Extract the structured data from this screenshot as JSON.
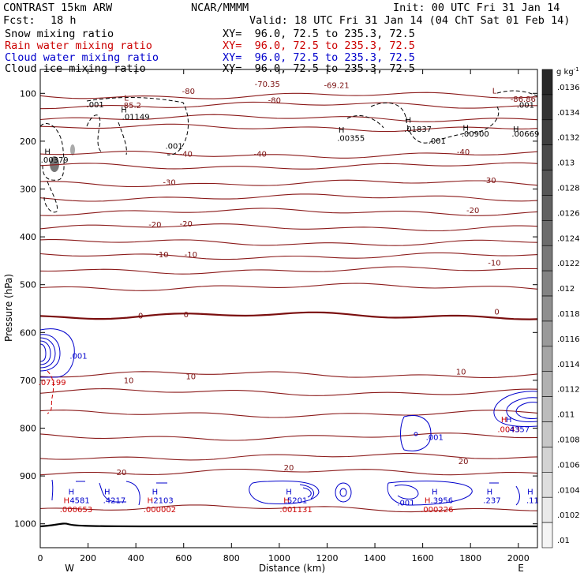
{
  "header": {
    "model": "CONTRAST 15km ARW",
    "org": "NCAR/MMMM",
    "init": "Init: 00 UTC Fri 31 Jan 14",
    "fcst_label": "Fcst:",
    "fcst_value": "18 h",
    "valid": "Valid: 18 UTC Fri 31 Jan 14 (04 ChT Sat 01 Feb 14)"
  },
  "legend": [
    {
      "label": "Snow mixing ratio",
      "xy": "XY=  96.0, 72.5 to 235.3, 72.5",
      "color": "#000000"
    },
    {
      "label": "Rain water mixing ratio",
      "xy": "XY=  96.0, 72.5 to 235.3, 72.5",
      "color": "#cc0000"
    },
    {
      "label": "Cloud water mixing ratio",
      "xy": "XY=  96.0, 72.5 to 235.3, 72.5",
      "color": "#0000cc"
    },
    {
      "label": "Cloud ice mixing ratio",
      "xy": "XY=  96.0, 72.5 to 235.3, 72.5",
      "color": "#000000"
    }
  ],
  "chart_data": {
    "type": "contour",
    "xlabel": "Distance (km)",
    "ylabel": "Pressure (hPa)",
    "xlim": [
      0,
      2080
    ],
    "ylim": [
      1050,
      50
    ],
    "x_ticks": [
      0,
      200,
      400,
      600,
      800,
      1000,
      1200,
      1400,
      1600,
      1800,
      2000
    ],
    "y_ticks": [
      100,
      200,
      300,
      400,
      500,
      600,
      700,
      800,
      900,
      1000
    ],
    "x_end_labels": {
      "left": "W",
      "right": "E"
    },
    "colorbar": {
      "unit": "g kg",
      "unit_exp": "-1",
      "ticks": [
        ".0136",
        ".0134",
        ".0132",
        ".013",
        ".0128",
        ".0126",
        ".0124",
        ".0122",
        ".012",
        ".0118",
        ".0116",
        ".0114",
        ".0112",
        ".011",
        ".0108",
        ".0106",
        ".0104",
        ".0102",
        ".01"
      ]
    },
    "temperature_contours": [
      {
        "p": 105,
        "label": "-80"
      },
      {
        "p": 125,
        "label": "-80"
      },
      {
        "p": 152,
        "label": ""
      },
      {
        "p": 172,
        "label": ""
      },
      {
        "p": 228,
        "label": "-40"
      },
      {
        "p": 252,
        "label": ""
      },
      {
        "p": 288,
        "label": "-30"
      },
      {
        "p": 318,
        "label": ""
      },
      {
        "p": 348,
        "label": "-20"
      },
      {
        "p": 380,
        "label": ""
      },
      {
        "p": 412,
        "label": ""
      },
      {
        "p": 440,
        "label": "-10"
      },
      {
        "p": 470,
        "label": ""
      },
      {
        "p": 505,
        "label": ""
      },
      {
        "p": 565,
        "label": "0",
        "thick": true
      },
      {
        "p": 688,
        "label": "10"
      },
      {
        "p": 725,
        "label": ""
      },
      {
        "p": 770,
        "label": ""
      },
      {
        "p": 818,
        "label": ""
      },
      {
        "p": 860,
        "label": "20"
      },
      {
        "p": 892,
        "label": "20"
      },
      {
        "p": 968,
        "label": ""
      }
    ],
    "labels": [
      {
        "text": "-80",
        "x": 620,
        "p": 101,
        "color": "#7a1010"
      },
      {
        "text": "-70.35",
        "x": 950,
        "p": 86,
        "color": "#7a1010"
      },
      {
        "text": "-69.21",
        "x": 1240,
        "p": 89,
        "color": "#7a1010"
      },
      {
        "text": "-80",
        "x": 980,
        "p": 120,
        "color": "#7a1010"
      },
      {
        "text": "-86.86",
        "x": 2020,
        "p": 118,
        "color": "#7a1010"
      },
      {
        "text": "L",
        "x": 360,
        "p": 115,
        "color": "#7a1010"
      },
      {
        "text": "L",
        "x": 1900,
        "p": 100,
        "color": "#7a1010"
      },
      {
        "text": "-85.2",
        "x": 380,
        "p": 131,
        "color": "#7a1010"
      },
      {
        "text": "-40",
        "x": 610,
        "p": 232,
        "color": "#7a1010"
      },
      {
        "text": "-40",
        "x": 920,
        "p": 232,
        "color": "#7a1010"
      },
      {
        "text": "-40",
        "x": 1770,
        "p": 228,
        "color": "#7a1010"
      },
      {
        "text": "-30",
        "x": 540,
        "p": 292,
        "color": "#7a1010"
      },
      {
        "text": "-30",
        "x": 1880,
        "p": 288,
        "color": "#7a1010"
      },
      {
        "text": "-20",
        "x": 480,
        "p": 380,
        "color": "#7a1010"
      },
      {
        "text": "-20",
        "x": 610,
        "p": 378,
        "color": "#7a1010"
      },
      {
        "text": "-20",
        "x": 1810,
        "p": 350,
        "color": "#7a1010"
      },
      {
        "text": "-10",
        "x": 510,
        "p": 443,
        "color": "#7a1010"
      },
      {
        "text": "-10",
        "x": 630,
        "p": 443,
        "color": "#7a1010"
      },
      {
        "text": "-10",
        "x": 1900,
        "p": 460,
        "color": "#7a1010"
      },
      {
        "text": "0",
        "x": 420,
        "p": 571,
        "color": "#7a1010"
      },
      {
        "text": "0",
        "x": 610,
        "p": 568,
        "color": "#7a1010"
      },
      {
        "text": "0",
        "x": 1910,
        "p": 562,
        "color": "#7a1010"
      },
      {
        "text": "10",
        "x": 370,
        "p": 706,
        "color": "#7a1010"
      },
      {
        "text": "10",
        "x": 630,
        "p": 698,
        "color": "#7a1010"
      },
      {
        "text": "10",
        "x": 1760,
        "p": 688,
        "color": "#7a1010"
      },
      {
        "text": "20",
        "x": 340,
        "p": 898,
        "color": "#7a1010"
      },
      {
        "text": "20",
        "x": 1040,
        "p": 888,
        "color": "#7a1010"
      },
      {
        "text": "20",
        "x": 1770,
        "p": 875,
        "color": "#7a1010"
      },
      {
        "text": ".001",
        "x": 230,
        "p": 129,
        "color": "#000000"
      },
      {
        "text": "H",
        "x": 350,
        "p": 140,
        "color": "#000000"
      },
      {
        "text": ".01149",
        "x": 400,
        "p": 155,
        "color": "#000000"
      },
      {
        "text": ".001",
        "x": 560,
        "p": 216,
        "color": "#000000"
      },
      {
        "text": "H",
        "x": 30,
        "p": 227,
        "color": "#000000"
      },
      {
        "text": ".00379",
        "x": 60,
        "p": 245,
        "color": "#000000"
      },
      {
        "text": "H",
        "x": 1260,
        "p": 182,
        "color": "#000000"
      },
      {
        "text": ".00355",
        "x": 1300,
        "p": 199,
        "color": "#000000"
      },
      {
        "text": "H",
        "x": 1540,
        "p": 161,
        "color": "#000000"
      },
      {
        "text": ".01837",
        "x": 1580,
        "p": 180,
        "color": "#000000"
      },
      {
        "text": ".001",
        "x": 1660,
        "p": 205,
        "color": "#000000"
      },
      {
        "text": "H",
        "x": 1780,
        "p": 178,
        "color": "#000000"
      },
      {
        "text": ".00900",
        "x": 1820,
        "p": 190,
        "color": "#000000"
      },
      {
        "text": ".00669",
        "x": 2030,
        "p": 190,
        "color": "#000000"
      },
      {
        "text": "H",
        "x": 1990,
        "p": 180,
        "color": "#000000"
      },
      {
        "text": ".001",
        "x": 2030,
        "p": 130,
        "color": "#000000"
      },
      {
        "text": ".001",
        "x": 160,
        "p": 655,
        "color": "#0000cc"
      },
      {
        "text": ".07199",
        "x": 50,
        "p": 710,
        "color": "#cc0000"
      },
      {
        "text": "H",
        "x": 1940,
        "p": 788,
        "color": "#cc0000"
      },
      {
        "text": "H",
        "x": 1960,
        "p": 788,
        "color": "#0000cc"
      },
      {
        "text": ".0043",
        "x": 1960,
        "p": 808,
        "color": "#cc0000"
      },
      {
        "text": ".4357",
        "x": 2000,
        "p": 808,
        "color": "#0000cc"
      },
      {
        "text": ".001",
        "x": 1650,
        "p": 825,
        "color": "#0000cc"
      },
      {
        "text": "H",
        "x": 130,
        "p": 939,
        "color": "#0000cc"
      },
      {
        "text": ".4581",
        "x": 160,
        "p": 957,
        "color": "#0000cc"
      },
      {
        "text": "H",
        "x": 110,
        "p": 957,
        "color": "#cc0000"
      },
      {
        "text": ".000653",
        "x": 150,
        "p": 976,
        "color": "#cc0000"
      },
      {
        "text": "H",
        "x": 280,
        "p": 939,
        "color": "#0000cc"
      },
      {
        "text": ".4217",
        "x": 310,
        "p": 957,
        "color": "#0000cc"
      },
      {
        "text": "H",
        "x": 480,
        "p": 939,
        "color": "#0000cc"
      },
      {
        "text": "H",
        "x": 460,
        "p": 957,
        "color": "#cc0000"
      },
      {
        "text": ".2103",
        "x": 510,
        "p": 957,
        "color": "#0000cc"
      },
      {
        "text": ".000002",
        "x": 500,
        "p": 976,
        "color": "#cc0000"
      },
      {
        "text": "H",
        "x": 1040,
        "p": 939,
        "color": "#0000cc"
      },
      {
        "text": "H",
        "x": 1030,
        "p": 957,
        "color": "#cc0000"
      },
      {
        "text": ".5201",
        "x": 1070,
        "p": 957,
        "color": "#0000cc"
      },
      {
        "text": ".001131",
        "x": 1070,
        "p": 976,
        "color": "#cc0000"
      },
      {
        "text": "H",
        "x": 1650,
        "p": 939,
        "color": "#0000cc"
      },
      {
        "text": ".001",
        "x": 1530,
        "p": 962,
        "color": "#0000cc"
      },
      {
        "text": "H",
        "x": 1620,
        "p": 957,
        "color": "#cc0000"
      },
      {
        "text": ".3956",
        "x": 1680,
        "p": 957,
        "color": "#0000cc"
      },
      {
        "text": ".000226",
        "x": 1660,
        "p": 976,
        "color": "#cc0000"
      },
      {
        "text": "H",
        "x": 1880,
        "p": 939,
        "color": "#0000cc"
      },
      {
        "text": ".237",
        "x": 1890,
        "p": 957,
        "color": "#0000cc"
      },
      {
        "text": "H",
        "x": 2050,
        "p": 939,
        "color": "#0000cc"
      },
      {
        "text": ".11",
        "x": 2060,
        "p": 957,
        "color": "#0000cc"
      }
    ]
  }
}
